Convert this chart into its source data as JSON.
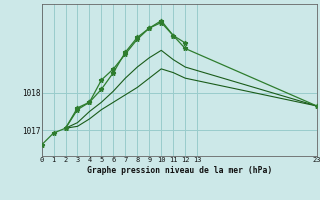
{
  "title": "Graphe pression niveau de la mer (hPa)",
  "background_color": "#cce8e8",
  "plot_bg": "#cce8e8",
  "grid_color": "#99cccc",
  "line_color_dark": "#1a5c1a",
  "line_color_medium": "#2e7d2e",
  "xlim": [
    0,
    23
  ],
  "ylim": [
    1016.3,
    1020.4
  ],
  "yticks": [
    1017,
    1018
  ],
  "xtick_labels": [
    "0",
    "1",
    "2",
    "3",
    "4",
    "5",
    "6",
    "7",
    "8",
    "9",
    "10",
    "11",
    "12",
    "13",
    "23"
  ],
  "xtick_positions": [
    0,
    1,
    2,
    3,
    4,
    5,
    6,
    7,
    8,
    9,
    10,
    11,
    12,
    13,
    23
  ],
  "series1_x": [
    0,
    1,
    2,
    3,
    4,
    5,
    6,
    7,
    8,
    9,
    10,
    11,
    12,
    23
  ],
  "series1_y": [
    1016.6,
    1016.92,
    1017.05,
    1017.55,
    1017.75,
    1018.35,
    1018.65,
    1019.05,
    1019.45,
    1019.75,
    1019.95,
    1019.55,
    1019.2,
    1017.65
  ],
  "series2_x": [
    2,
    3,
    4,
    5,
    6,
    7,
    8,
    9,
    10,
    11,
    12
  ],
  "series2_y": [
    1017.05,
    1017.6,
    1017.75,
    1018.1,
    1018.55,
    1019.1,
    1019.5,
    1019.75,
    1019.9,
    1019.55,
    1019.35
  ],
  "series3_x": [
    2,
    3,
    4,
    5,
    6,
    7,
    8,
    9,
    10,
    11,
    12,
    23
  ],
  "series3_y": [
    1017.05,
    1017.2,
    1017.5,
    1017.75,
    1018.05,
    1018.4,
    1018.7,
    1018.95,
    1019.15,
    1018.9,
    1018.7,
    1017.65
  ],
  "series4_x": [
    2,
    3,
    4,
    5,
    6,
    7,
    8,
    9,
    10,
    11,
    12,
    23
  ],
  "series4_y": [
    1017.05,
    1017.1,
    1017.3,
    1017.55,
    1017.75,
    1017.95,
    1018.15,
    1018.4,
    1018.65,
    1018.55,
    1018.4,
    1017.65
  ]
}
